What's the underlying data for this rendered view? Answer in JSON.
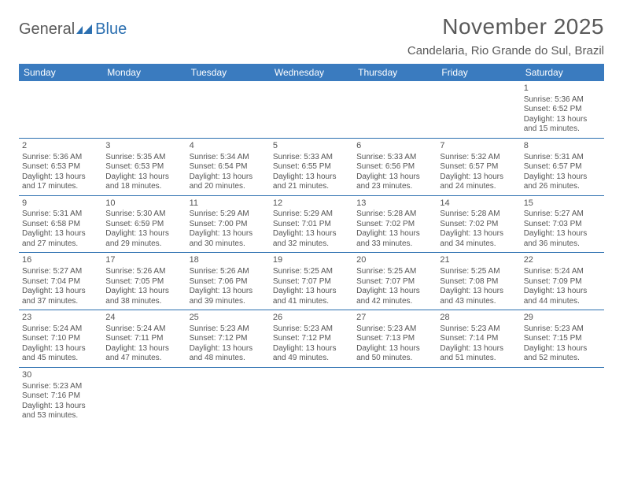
{
  "logo": {
    "part1": "General",
    "part2": "Blue"
  },
  "title": "November 2025",
  "location": "Candelaria, Rio Grande do Sul, Brazil",
  "day_names": [
    "Sunday",
    "Monday",
    "Tuesday",
    "Wednesday",
    "Thursday",
    "Friday",
    "Saturday"
  ],
  "colors": {
    "header_bg": "#3a7bbf",
    "header_text": "#ffffff",
    "border": "#2b6fb0",
    "text": "#555555",
    "title_text": "#5a5a5a"
  },
  "typography": {
    "title_fontsize": 28,
    "location_fontsize": 15,
    "header_fontsize": 12,
    "cell_fontsize": 10,
    "daynum_fontsize": 11
  },
  "weeks": [
    [
      null,
      null,
      null,
      null,
      null,
      null,
      {
        "n": "1",
        "sr": "Sunrise: 5:36 AM",
        "ss": "Sunset: 6:52 PM",
        "dl1": "Daylight: 13 hours",
        "dl2": "and 15 minutes."
      }
    ],
    [
      {
        "n": "2",
        "sr": "Sunrise: 5:36 AM",
        "ss": "Sunset: 6:53 PM",
        "dl1": "Daylight: 13 hours",
        "dl2": "and 17 minutes."
      },
      {
        "n": "3",
        "sr": "Sunrise: 5:35 AM",
        "ss": "Sunset: 6:53 PM",
        "dl1": "Daylight: 13 hours",
        "dl2": "and 18 minutes."
      },
      {
        "n": "4",
        "sr": "Sunrise: 5:34 AM",
        "ss": "Sunset: 6:54 PM",
        "dl1": "Daylight: 13 hours",
        "dl2": "and 20 minutes."
      },
      {
        "n": "5",
        "sr": "Sunrise: 5:33 AM",
        "ss": "Sunset: 6:55 PM",
        "dl1": "Daylight: 13 hours",
        "dl2": "and 21 minutes."
      },
      {
        "n": "6",
        "sr": "Sunrise: 5:33 AM",
        "ss": "Sunset: 6:56 PM",
        "dl1": "Daylight: 13 hours",
        "dl2": "and 23 minutes."
      },
      {
        "n": "7",
        "sr": "Sunrise: 5:32 AM",
        "ss": "Sunset: 6:57 PM",
        "dl1": "Daylight: 13 hours",
        "dl2": "and 24 minutes."
      },
      {
        "n": "8",
        "sr": "Sunrise: 5:31 AM",
        "ss": "Sunset: 6:57 PM",
        "dl1": "Daylight: 13 hours",
        "dl2": "and 26 minutes."
      }
    ],
    [
      {
        "n": "9",
        "sr": "Sunrise: 5:31 AM",
        "ss": "Sunset: 6:58 PM",
        "dl1": "Daylight: 13 hours",
        "dl2": "and 27 minutes."
      },
      {
        "n": "10",
        "sr": "Sunrise: 5:30 AM",
        "ss": "Sunset: 6:59 PM",
        "dl1": "Daylight: 13 hours",
        "dl2": "and 29 minutes."
      },
      {
        "n": "11",
        "sr": "Sunrise: 5:29 AM",
        "ss": "Sunset: 7:00 PM",
        "dl1": "Daylight: 13 hours",
        "dl2": "and 30 minutes."
      },
      {
        "n": "12",
        "sr": "Sunrise: 5:29 AM",
        "ss": "Sunset: 7:01 PM",
        "dl1": "Daylight: 13 hours",
        "dl2": "and 32 minutes."
      },
      {
        "n": "13",
        "sr": "Sunrise: 5:28 AM",
        "ss": "Sunset: 7:02 PM",
        "dl1": "Daylight: 13 hours",
        "dl2": "and 33 minutes."
      },
      {
        "n": "14",
        "sr": "Sunrise: 5:28 AM",
        "ss": "Sunset: 7:02 PM",
        "dl1": "Daylight: 13 hours",
        "dl2": "and 34 minutes."
      },
      {
        "n": "15",
        "sr": "Sunrise: 5:27 AM",
        "ss": "Sunset: 7:03 PM",
        "dl1": "Daylight: 13 hours",
        "dl2": "and 36 minutes."
      }
    ],
    [
      {
        "n": "16",
        "sr": "Sunrise: 5:27 AM",
        "ss": "Sunset: 7:04 PM",
        "dl1": "Daylight: 13 hours",
        "dl2": "and 37 minutes."
      },
      {
        "n": "17",
        "sr": "Sunrise: 5:26 AM",
        "ss": "Sunset: 7:05 PM",
        "dl1": "Daylight: 13 hours",
        "dl2": "and 38 minutes."
      },
      {
        "n": "18",
        "sr": "Sunrise: 5:26 AM",
        "ss": "Sunset: 7:06 PM",
        "dl1": "Daylight: 13 hours",
        "dl2": "and 39 minutes."
      },
      {
        "n": "19",
        "sr": "Sunrise: 5:25 AM",
        "ss": "Sunset: 7:07 PM",
        "dl1": "Daylight: 13 hours",
        "dl2": "and 41 minutes."
      },
      {
        "n": "20",
        "sr": "Sunrise: 5:25 AM",
        "ss": "Sunset: 7:07 PM",
        "dl1": "Daylight: 13 hours",
        "dl2": "and 42 minutes."
      },
      {
        "n": "21",
        "sr": "Sunrise: 5:25 AM",
        "ss": "Sunset: 7:08 PM",
        "dl1": "Daylight: 13 hours",
        "dl2": "and 43 minutes."
      },
      {
        "n": "22",
        "sr": "Sunrise: 5:24 AM",
        "ss": "Sunset: 7:09 PM",
        "dl1": "Daylight: 13 hours",
        "dl2": "and 44 minutes."
      }
    ],
    [
      {
        "n": "23",
        "sr": "Sunrise: 5:24 AM",
        "ss": "Sunset: 7:10 PM",
        "dl1": "Daylight: 13 hours",
        "dl2": "and 45 minutes."
      },
      {
        "n": "24",
        "sr": "Sunrise: 5:24 AM",
        "ss": "Sunset: 7:11 PM",
        "dl1": "Daylight: 13 hours",
        "dl2": "and 47 minutes."
      },
      {
        "n": "25",
        "sr": "Sunrise: 5:23 AM",
        "ss": "Sunset: 7:12 PM",
        "dl1": "Daylight: 13 hours",
        "dl2": "and 48 minutes."
      },
      {
        "n": "26",
        "sr": "Sunrise: 5:23 AM",
        "ss": "Sunset: 7:12 PM",
        "dl1": "Daylight: 13 hours",
        "dl2": "and 49 minutes."
      },
      {
        "n": "27",
        "sr": "Sunrise: 5:23 AM",
        "ss": "Sunset: 7:13 PM",
        "dl1": "Daylight: 13 hours",
        "dl2": "and 50 minutes."
      },
      {
        "n": "28",
        "sr": "Sunrise: 5:23 AM",
        "ss": "Sunset: 7:14 PM",
        "dl1": "Daylight: 13 hours",
        "dl2": "and 51 minutes."
      },
      {
        "n": "29",
        "sr": "Sunrise: 5:23 AM",
        "ss": "Sunset: 7:15 PM",
        "dl1": "Daylight: 13 hours",
        "dl2": "and 52 minutes."
      }
    ],
    [
      {
        "n": "30",
        "sr": "Sunrise: 5:23 AM",
        "ss": "Sunset: 7:16 PM",
        "dl1": "Daylight: 13 hours",
        "dl2": "and 53 minutes."
      },
      null,
      null,
      null,
      null,
      null,
      null
    ]
  ]
}
